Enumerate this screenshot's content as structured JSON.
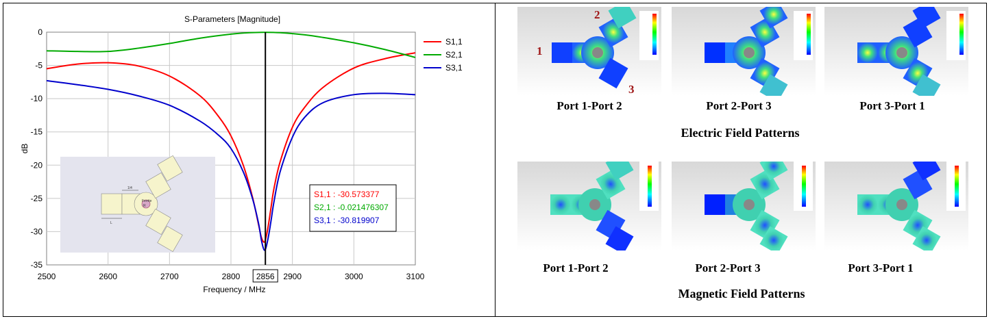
{
  "chart_data": {
    "type": "line",
    "title": "S-Parameters [Magnitude]",
    "xlabel": "Frequency / MHz",
    "ylabel": "dB",
    "xlim": [
      2500,
      3100
    ],
    "ylim": [
      -35,
      0
    ],
    "xticks": [
      "2500",
      "2600",
      "2700",
      "2800",
      "2900",
      "3000",
      "3100"
    ],
    "xtick_values": [
      2500,
      2600,
      2700,
      2800,
      2900,
      3000,
      3100
    ],
    "yticks": [
      "0",
      "-5",
      "-10",
      "-15",
      "-20",
      "-25",
      "-30",
      "-35"
    ],
    "ytick_values": [
      0,
      -5,
      -10,
      -15,
      -20,
      -25,
      -30,
      -35
    ],
    "grid": true,
    "legend_position": "right",
    "marker": {
      "x": 2856,
      "label": "2856"
    },
    "series": [
      {
        "name": "S1,1",
        "color": "#ff0000",
        "x": [
          2500,
          2550,
          2600,
          2650,
          2700,
          2750,
          2780,
          2800,
          2820,
          2835,
          2845,
          2850,
          2855,
          2860,
          2865,
          2870,
          2880,
          2900,
          2920,
          2950,
          3000,
          3050,
          3100
        ],
        "y": [
          -5.5,
          -4.8,
          -4.6,
          -5.1,
          -6.6,
          -9.6,
          -12.7,
          -15.6,
          -20.0,
          -24.8,
          -29.0,
          -31.0,
          -31.5,
          -29.5,
          -26.5,
          -23.5,
          -19.5,
          -14.3,
          -11.3,
          -8.3,
          -5.4,
          -4.0,
          -3.1
        ]
      },
      {
        "name": "S2,1",
        "color": "#00aa00",
        "x": [
          2500,
          2550,
          2600,
          2650,
          2700,
          2750,
          2800,
          2830,
          2856,
          2880,
          2920,
          2950,
          3000,
          3050,
          3100
        ],
        "y": [
          -2.8,
          -2.9,
          -2.9,
          -2.4,
          -1.7,
          -0.9,
          -0.3,
          -0.08,
          -0.02,
          -0.08,
          -0.4,
          -0.8,
          -1.6,
          -2.6,
          -3.8
        ]
      },
      {
        "name": "S3,1",
        "color": "#0000cc",
        "x": [
          2500,
          2550,
          2600,
          2650,
          2700,
          2750,
          2780,
          2800,
          2820,
          2835,
          2845,
          2850,
          2855,
          2860,
          2865,
          2870,
          2880,
          2900,
          2920,
          2950,
          3000,
          3050,
          3100
        ],
        "y": [
          -7.3,
          -7.9,
          -8.6,
          -9.6,
          -11.0,
          -13.4,
          -15.5,
          -17.5,
          -21.0,
          -25.0,
          -28.8,
          -31.5,
          -32.8,
          -31.2,
          -28.5,
          -25.5,
          -21.0,
          -15.8,
          -12.8,
          -10.6,
          -9.4,
          -9.2,
          -9.4
        ]
      }
    ],
    "readout": [
      {
        "text": "S1,1 : -30.573377",
        "color": "#ff0000"
      },
      {
        "text": "S2,1 : -0.021476307",
        "color": "#00aa00"
      },
      {
        "text": "S3,1 : -30.819907",
        "color": "#0000cc"
      }
    ],
    "inset_labels": {
      "dim_top": "1/4",
      "dim_bottom": "L",
      "center": "R",
      "tag": "Ferrite"
    }
  },
  "field_panels": {
    "port_numbers": [
      "1",
      "2",
      "3"
    ],
    "electric_captions": [
      "Port 1-Port 2",
      "Port 2-Port 3",
      "Port 3-Port 1"
    ],
    "magnetic_captions": [
      "Port 1-Port 2",
      "Port 2-Port 3",
      "Port 3-Port 1"
    ],
    "electric_title": "Electric Field Patterns",
    "magnetic_title": "Magnetic Field Patterns"
  }
}
